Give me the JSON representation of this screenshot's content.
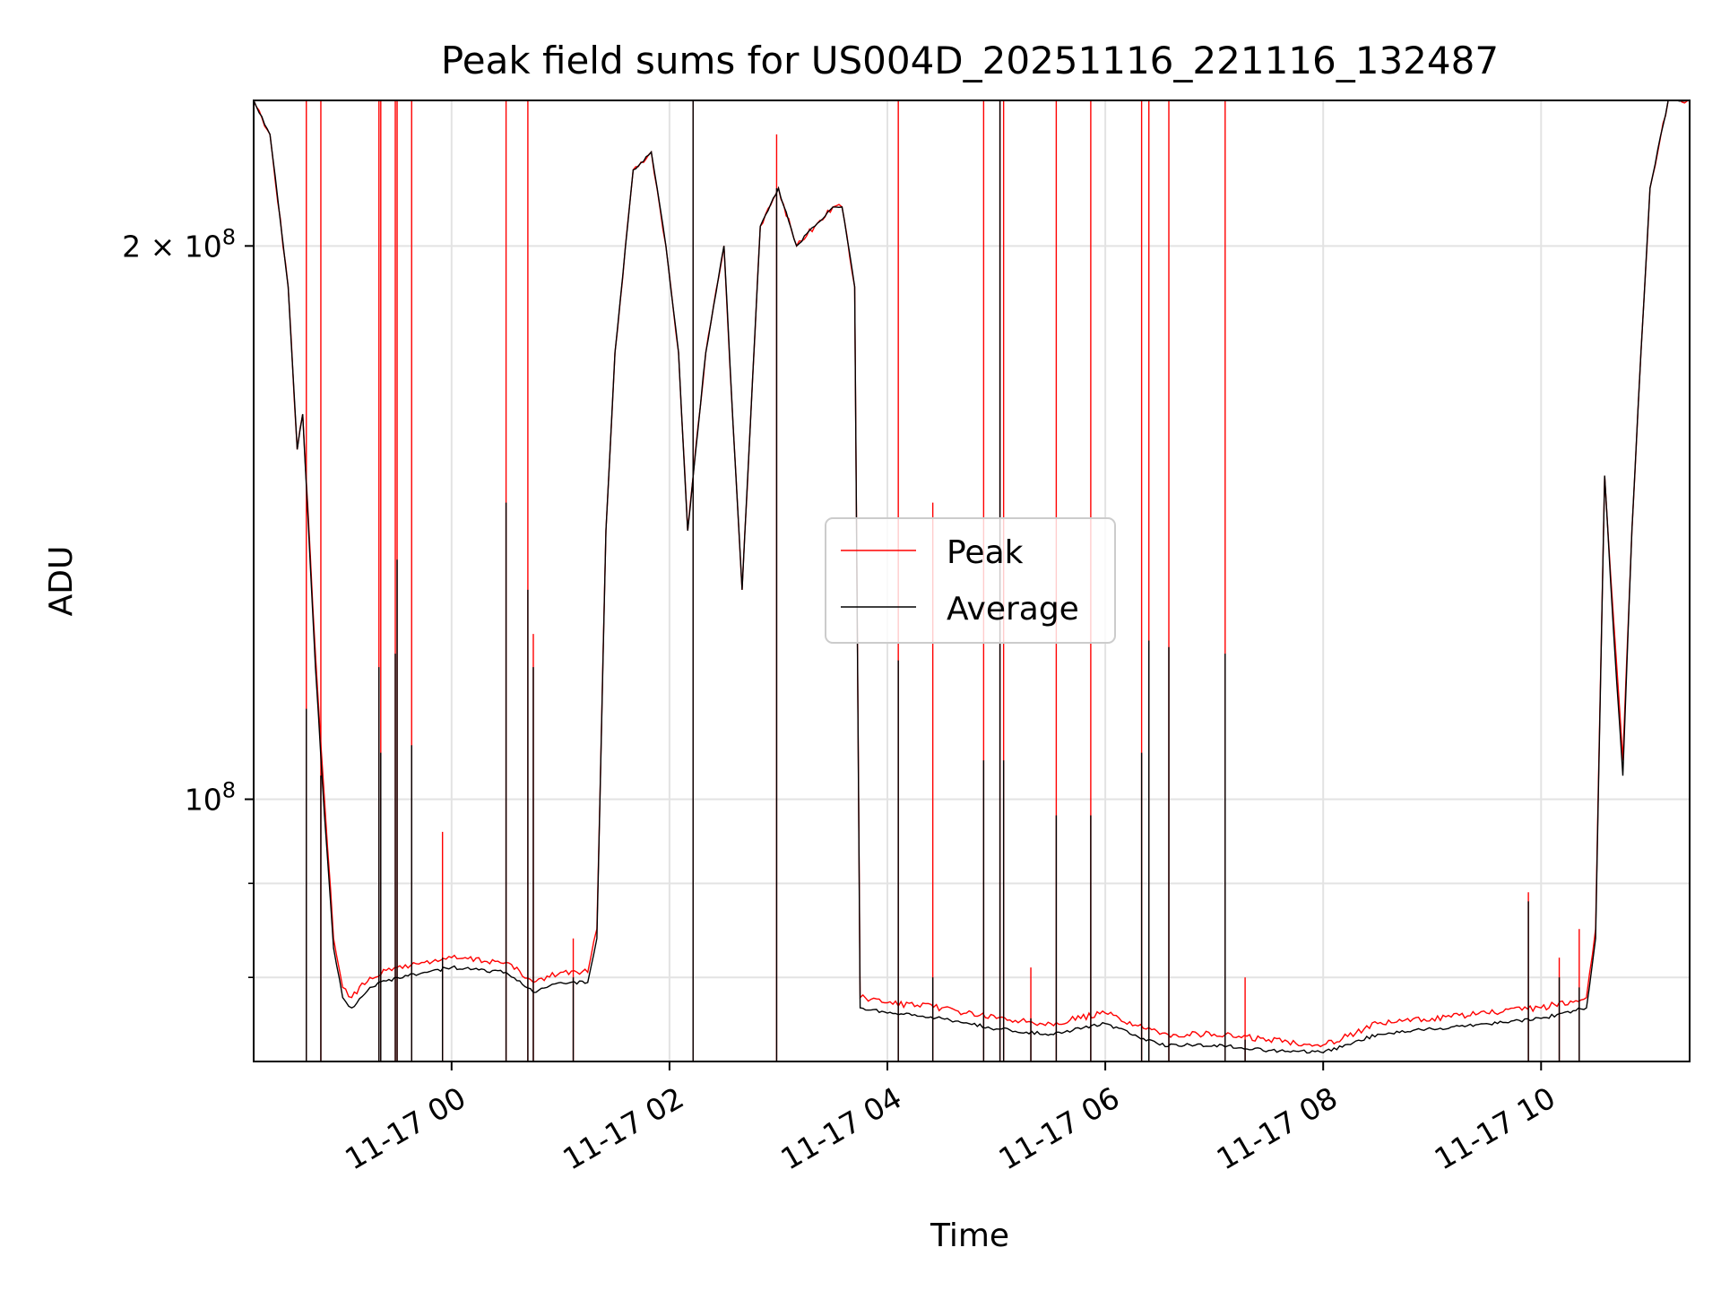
{
  "chart_data": {
    "type": "line",
    "title": "Peak field sums for US004D_20251116_221116_132487",
    "xlabel": "Time",
    "ylabel": "ADU",
    "yscale": "log",
    "ylim": [
      72000000,
      240000000
    ],
    "xlim_hours_from_2025-11-16_22:11": [
      0,
      13.18
    ],
    "grid": true,
    "legend_placement": "center",
    "x_ticks": [
      {
        "label": "11-17 00",
        "time": "2025-11-17 00:00"
      },
      {
        "label": "11-17 02",
        "time": "2025-11-17 02:00"
      },
      {
        "label": "11-17 04",
        "time": "2025-11-17 04:00"
      },
      {
        "label": "11-17 06",
        "time": "2025-11-17 06:00"
      },
      {
        "label": "11-17 08",
        "time": "2025-11-17 08:00"
      },
      {
        "label": "11-17 10",
        "time": "2025-11-17 10:00"
      }
    ],
    "y_ticks": [
      {
        "base": "2",
        "times": "×",
        "pow": "10",
        "exp": "8",
        "value": 200000000
      },
      {
        "base": "",
        "times": "",
        "pow": "10",
        "exp": "8",
        "value": 100000000
      }
    ],
    "y_minor_ticks": [
      80000000,
      90000000
    ],
    "series": [
      {
        "name": "Peak",
        "color": "#ff0000",
        "points": [
          [
            "2025-11-16 22:11",
            240000000
          ],
          [
            "2025-11-16 22:20",
            230000000
          ],
          [
            "2025-11-16 22:30",
            190000000
          ],
          [
            "2025-11-16 22:35",
            155000000
          ],
          [
            "2025-11-16 22:38",
            162000000
          ],
          [
            "2025-11-16 22:45",
            120000000
          ],
          [
            "2025-11-16 22:50",
            100000000
          ],
          [
            "2025-11-16 22:55",
            84000000
          ],
          [
            "2025-11-16 23:00",
            79000000
          ],
          [
            "2025-11-16 23:05",
            78000000
          ],
          [
            "2025-11-16 23:15",
            80000000
          ],
          [
            "2025-11-16 23:30",
            81000000
          ],
          [
            "2025-11-16 23:45",
            81500000
          ],
          [
            "2025-11-17 00:00",
            82000000
          ],
          [
            "2025-11-17 00:30",
            81500000
          ],
          [
            "2025-11-17 00:45",
            79500000
          ],
          [
            "2025-11-17 01:00",
            80500000
          ],
          [
            "2025-11-17 01:15",
            80500000
          ],
          [
            "2025-11-17 01:20",
            85000000
          ],
          [
            "2025-11-17 01:25",
            140000000
          ],
          [
            "2025-11-17 01:30",
            175000000
          ],
          [
            "2025-11-17 01:40",
            220000000
          ],
          [
            "2025-11-17 01:50",
            225000000
          ],
          [
            "2025-11-17 01:58",
            200000000
          ],
          [
            "2025-11-17 02:05",
            175000000
          ],
          [
            "2025-11-17 02:10",
            140000000
          ],
          [
            "2025-11-17 02:20",
            175000000
          ],
          [
            "2025-11-17 02:30",
            200000000
          ],
          [
            "2025-11-17 02:35",
            160000000
          ],
          [
            "2025-11-17 02:40",
            130000000
          ],
          [
            "2025-11-17 02:50",
            205000000
          ],
          [
            "2025-11-17 03:00",
            215000000
          ],
          [
            "2025-11-17 03:10",
            200000000
          ],
          [
            "2025-11-17 03:20",
            205000000
          ],
          [
            "2025-11-17 03:30",
            210000000
          ],
          [
            "2025-11-17 03:35",
            210000000
          ],
          [
            "2025-11-17 03:42",
            190000000
          ],
          [
            "2025-11-17 03:45",
            78000000
          ],
          [
            "2025-11-17 04:00",
            77500000
          ],
          [
            "2025-11-17 04:30",
            77000000
          ],
          [
            "2025-11-17 05:00",
            76000000
          ],
          [
            "2025-11-17 05:30",
            75500000
          ],
          [
            "2025-11-17 06:00",
            76500000
          ],
          [
            "2025-11-17 06:30",
            74500000
          ],
          [
            "2025-11-17 07:00",
            74500000
          ],
          [
            "2025-11-17 07:30",
            74000000
          ],
          [
            "2025-11-17 08:00",
            73500000
          ],
          [
            "2025-11-17 08:30",
            75500000
          ],
          [
            "2025-11-17 09:00",
            76000000
          ],
          [
            "2025-11-17 09:30",
            76500000
          ],
          [
            "2025-11-17 10:00",
            77000000
          ],
          [
            "2025-11-17 10:25",
            78000000
          ],
          [
            "2025-11-17 10:30",
            85000000
          ],
          [
            "2025-11-17 10:35",
            150000000
          ],
          [
            "2025-11-17 10:40",
            125000000
          ],
          [
            "2025-11-17 10:45",
            105000000
          ],
          [
            "2025-11-17 10:50",
            140000000
          ],
          [
            "2025-11-17 10:55",
            175000000
          ],
          [
            "2025-11-17 11:00",
            215000000
          ],
          [
            "2025-11-17 11:10",
            240000000
          ],
          [
            "2025-11-17 11:22",
            240000000
          ]
        ]
      },
      {
        "name": "Average",
        "color": "#000000",
        "points": [
          [
            "2025-11-16 22:11",
            240000000
          ],
          [
            "2025-11-16 22:20",
            230000000
          ],
          [
            "2025-11-16 22:30",
            190000000
          ],
          [
            "2025-11-16 22:35",
            155000000
          ],
          [
            "2025-11-16 22:38",
            162000000
          ],
          [
            "2025-11-16 22:45",
            118000000
          ],
          [
            "2025-11-16 22:50",
            98000000
          ],
          [
            "2025-11-16 22:55",
            83000000
          ],
          [
            "2025-11-16 23:00",
            78000000
          ],
          [
            "2025-11-16 23:05",
            77000000
          ],
          [
            "2025-11-16 23:15",
            79000000
          ],
          [
            "2025-11-16 23:30",
            80000000
          ],
          [
            "2025-11-16 23:45",
            80500000
          ],
          [
            "2025-11-17 00:00",
            81000000
          ],
          [
            "2025-11-17 00:30",
            80500000
          ],
          [
            "2025-11-17 00:45",
            78500000
          ],
          [
            "2025-11-17 01:00",
            79500000
          ],
          [
            "2025-11-17 01:15",
            79500000
          ],
          [
            "2025-11-17 01:20",
            84000000
          ],
          [
            "2025-11-17 01:25",
            140000000
          ],
          [
            "2025-11-17 01:30",
            175000000
          ],
          [
            "2025-11-17 01:40",
            220000000
          ],
          [
            "2025-11-17 01:50",
            225000000
          ],
          [
            "2025-11-17 01:58",
            200000000
          ],
          [
            "2025-11-17 02:05",
            175000000
          ],
          [
            "2025-11-17 02:10",
            140000000
          ],
          [
            "2025-11-17 02:20",
            175000000
          ],
          [
            "2025-11-17 02:30",
            200000000
          ],
          [
            "2025-11-17 02:35",
            160000000
          ],
          [
            "2025-11-17 02:40",
            130000000
          ],
          [
            "2025-11-17 02:50",
            205000000
          ],
          [
            "2025-11-17 03:00",
            215000000
          ],
          [
            "2025-11-17 03:10",
            200000000
          ],
          [
            "2025-11-17 03:20",
            205000000
          ],
          [
            "2025-11-17 03:30",
            210000000
          ],
          [
            "2025-11-17 03:35",
            210000000
          ],
          [
            "2025-11-17 03:42",
            190000000
          ],
          [
            "2025-11-17 03:45",
            77000000
          ],
          [
            "2025-11-17 04:00",
            76500000
          ],
          [
            "2025-11-17 04:30",
            76000000
          ],
          [
            "2025-11-17 05:00",
            75000000
          ],
          [
            "2025-11-17 05:30",
            74500000
          ],
          [
            "2025-11-17 06:00",
            75500000
          ],
          [
            "2025-11-17 06:30",
            73500000
          ],
          [
            "2025-11-17 07:00",
            73500000
          ],
          [
            "2025-11-17 07:30",
            73000000
          ],
          [
            "2025-11-17 08:00",
            72800000
          ],
          [
            "2025-11-17 08:30",
            74500000
          ],
          [
            "2025-11-17 09:00",
            75000000
          ],
          [
            "2025-11-17 09:30",
            75500000
          ],
          [
            "2025-11-17 10:00",
            76000000
          ],
          [
            "2025-11-17 10:25",
            77000000
          ],
          [
            "2025-11-17 10:30",
            84000000
          ],
          [
            "2025-11-17 10:35",
            150000000
          ],
          [
            "2025-11-17 10:40",
            123000000
          ],
          [
            "2025-11-17 10:45",
            103000000
          ],
          [
            "2025-11-17 10:50",
            140000000
          ],
          [
            "2025-11-17 10:55",
            175000000
          ],
          [
            "2025-11-17 11:00",
            215000000
          ],
          [
            "2025-11-17 11:10",
            240000000
          ],
          [
            "2025-11-17 11:22",
            240000000
          ]
        ]
      }
    ],
    "peak_spikes": [
      {
        "time": "2025-11-16 22:40",
        "peak": 240000000,
        "avg": 112000000
      },
      {
        "time": "2025-11-16 22:48",
        "peak": 240000000,
        "avg": 103000000
      },
      {
        "time": "2025-11-16 23:20",
        "peak": 240000000,
        "avg": 118000000
      },
      {
        "time": "2025-11-16 23:21",
        "peak": 240000000,
        "avg": 106000000
      },
      {
        "time": "2025-11-16 23:29",
        "peak": 240000000,
        "avg": 120000000
      },
      {
        "time": "2025-11-16 23:30",
        "peak": 240000000,
        "avg": 135000000
      },
      {
        "time": "2025-11-16 23:38",
        "peak": 240000000,
        "avg": 107000000
      },
      {
        "time": "2025-11-16 23:55",
        "peak": 96000000,
        "avg": 82000000
      },
      {
        "time": "2025-11-17 00:30",
        "peak": 240000000,
        "avg": 145000000
      },
      {
        "time": "2025-11-17 00:42",
        "peak": 240000000,
        "avg": 130000000
      },
      {
        "time": "2025-11-17 00:45",
        "peak": 123000000,
        "avg": 118000000
      },
      {
        "time": "2025-11-17 01:07",
        "peak": 84000000,
        "avg": 80000000
      },
      {
        "time": "2025-11-17 02:13",
        "peak": 240000000,
        "avg": 240000000
      },
      {
        "time": "2025-11-17 02:59",
        "peak": 230000000,
        "avg": 215000000
      },
      {
        "time": "2025-11-17 04:06",
        "peak": 240000000,
        "avg": 119000000
      },
      {
        "time": "2025-11-17 04:25",
        "peak": 145000000,
        "avg": 80000000
      },
      {
        "time": "2025-11-17 04:53",
        "peak": 240000000,
        "avg": 105000000
      },
      {
        "time": "2025-11-17 05:02",
        "peak": 240000000,
        "avg": 240000000
      },
      {
        "time": "2025-11-17 05:04",
        "peak": 240000000,
        "avg": 105000000
      },
      {
        "time": "2025-11-17 05:19",
        "peak": 81000000,
        "avg": 76000000
      },
      {
        "time": "2025-11-17 05:33",
        "peak": 240000000,
        "avg": 98000000
      },
      {
        "time": "2025-11-17 05:52",
        "peak": 240000000,
        "avg": 98000000
      },
      {
        "time": "2025-11-17 06:20",
        "peak": 240000000,
        "avg": 106000000
      },
      {
        "time": "2025-11-17 06:24",
        "peak": 240000000,
        "avg": 122000000
      },
      {
        "time": "2025-11-17 06:35",
        "peak": 240000000,
        "avg": 121000000
      },
      {
        "time": "2025-11-17 07:06",
        "peak": 240000000,
        "avg": 120000000
      },
      {
        "time": "2025-11-17 07:17",
        "peak": 80000000,
        "avg": 74000000
      },
      {
        "time": "2025-11-17 09:53",
        "peak": 89000000,
        "avg": 88000000
      },
      {
        "time": "2025-11-17 10:10",
        "peak": 82000000,
        "avg": 80000000
      },
      {
        "time": "2025-11-17 10:21",
        "peak": 85000000,
        "avg": 79000000
      }
    ]
  }
}
